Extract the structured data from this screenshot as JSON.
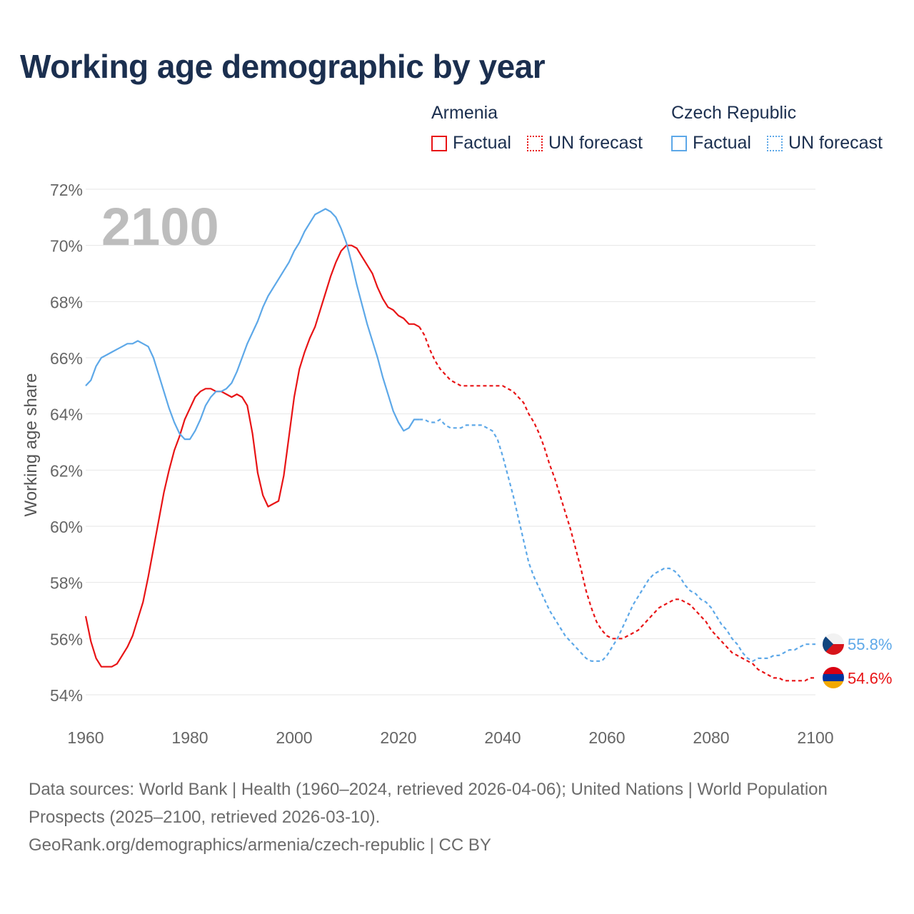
{
  "title": "Working age demographic by year",
  "legend": {
    "groups": [
      {
        "name": "Armenia",
        "factual": "Factual",
        "forecast": "UN forecast",
        "color": "#e81416"
      },
      {
        "name": "Czech Republic",
        "factual": "Factual",
        "forecast": "UN forecast",
        "color": "#5da8e8"
      }
    ]
  },
  "year_watermark": "2100",
  "footer": {
    "sources": "Data sources: World Bank | Health (1960–2024, retrieved 2026-04-06); United Nations | World Population Prospects (2025–2100, retrieved 2026-03-10).",
    "attribution": "GeoRank.org/demographics/armenia/czech-republic | CC BY"
  },
  "chart_data": {
    "type": "line",
    "ylabel": "Working age share",
    "xlabel": "",
    "xlim": [
      1960,
      2100
    ],
    "ylim": [
      53.5,
      72.3
    ],
    "x_ticks": [
      "1960",
      "1980",
      "2000",
      "2020",
      "2040",
      "2060",
      "2080",
      "2100"
    ],
    "y_ticks": [
      "54%",
      "56%",
      "58%",
      "60%",
      "62%",
      "64%",
      "66%",
      "68%",
      "70%",
      "72%"
    ],
    "factual_until": 2024,
    "series": [
      {
        "name": "Armenia",
        "color": "#e81416",
        "end_label": "54.6%",
        "points": [
          [
            1960,
            56.8
          ],
          [
            1961,
            55.9
          ],
          [
            1962,
            55.3
          ],
          [
            1963,
            55.0
          ],
          [
            1964,
            55.0
          ],
          [
            1965,
            55.0
          ],
          [
            1966,
            55.1
          ],
          [
            1967,
            55.4
          ],
          [
            1968,
            55.7
          ],
          [
            1969,
            56.1
          ],
          [
            1970,
            56.7
          ],
          [
            1971,
            57.3
          ],
          [
            1972,
            58.2
          ],
          [
            1973,
            59.2
          ],
          [
            1974,
            60.2
          ],
          [
            1975,
            61.2
          ],
          [
            1976,
            62.0
          ],
          [
            1977,
            62.7
          ],
          [
            1978,
            63.2
          ],
          [
            1979,
            63.8
          ],
          [
            1980,
            64.2
          ],
          [
            1981,
            64.6
          ],
          [
            1982,
            64.8
          ],
          [
            1983,
            64.9
          ],
          [
            1984,
            64.9
          ],
          [
            1985,
            64.8
          ],
          [
            1986,
            64.8
          ],
          [
            1987,
            64.7
          ],
          [
            1988,
            64.6
          ],
          [
            1989,
            64.7
          ],
          [
            1990,
            64.6
          ],
          [
            1991,
            64.3
          ],
          [
            1992,
            63.3
          ],
          [
            1993,
            61.9
          ],
          [
            1994,
            61.1
          ],
          [
            1995,
            60.7
          ],
          [
            1996,
            60.8
          ],
          [
            1997,
            60.9
          ],
          [
            1998,
            61.8
          ],
          [
            1999,
            63.2
          ],
          [
            2000,
            64.6
          ],
          [
            2001,
            65.6
          ],
          [
            2002,
            66.2
          ],
          [
            2003,
            66.7
          ],
          [
            2004,
            67.1
          ],
          [
            2005,
            67.7
          ],
          [
            2006,
            68.3
          ],
          [
            2007,
            68.9
          ],
          [
            2008,
            69.4
          ],
          [
            2009,
            69.8
          ],
          [
            2010,
            70.0
          ],
          [
            2011,
            70.0
          ],
          [
            2012,
            69.9
          ],
          [
            2013,
            69.6
          ],
          [
            2014,
            69.3
          ],
          [
            2015,
            69.0
          ],
          [
            2016,
            68.5
          ],
          [
            2017,
            68.1
          ],
          [
            2018,
            67.8
          ],
          [
            2019,
            67.7
          ],
          [
            2020,
            67.5
          ],
          [
            2021,
            67.4
          ],
          [
            2022,
            67.2
          ],
          [
            2023,
            67.2
          ],
          [
            2024,
            67.1
          ],
          [
            2025,
            66.8
          ],
          [
            2026,
            66.3
          ],
          [
            2027,
            65.9
          ],
          [
            2028,
            65.6
          ],
          [
            2029,
            65.4
          ],
          [
            2030,
            65.2
          ],
          [
            2031,
            65.1
          ],
          [
            2032,
            65.0
          ],
          [
            2033,
            65.0
          ],
          [
            2034,
            65.0
          ],
          [
            2035,
            65.0
          ],
          [
            2036,
            65.0
          ],
          [
            2037,
            65.0
          ],
          [
            2038,
            65.0
          ],
          [
            2039,
            65.0
          ],
          [
            2040,
            65.0
          ],
          [
            2041,
            64.9
          ],
          [
            2042,
            64.8
          ],
          [
            2043,
            64.6
          ],
          [
            2044,
            64.4
          ],
          [
            2045,
            64.0
          ],
          [
            2046,
            63.7
          ],
          [
            2047,
            63.3
          ],
          [
            2048,
            62.8
          ],
          [
            2049,
            62.2
          ],
          [
            2050,
            61.7
          ],
          [
            2051,
            61.1
          ],
          [
            2052,
            60.5
          ],
          [
            2053,
            59.9
          ],
          [
            2054,
            59.2
          ],
          [
            2055,
            58.5
          ],
          [
            2056,
            57.7
          ],
          [
            2057,
            57.1
          ],
          [
            2058,
            56.6
          ],
          [
            2059,
            56.3
          ],
          [
            2060,
            56.1
          ],
          [
            2061,
            56.0
          ],
          [
            2062,
            56.0
          ],
          [
            2063,
            56.0
          ],
          [
            2064,
            56.1
          ],
          [
            2065,
            56.2
          ],
          [
            2066,
            56.3
          ],
          [
            2067,
            56.5
          ],
          [
            2068,
            56.7
          ],
          [
            2069,
            56.9
          ],
          [
            2070,
            57.1
          ],
          [
            2071,
            57.2
          ],
          [
            2072,
            57.3
          ],
          [
            2073,
            57.4
          ],
          [
            2074,
            57.4
          ],
          [
            2075,
            57.3
          ],
          [
            2076,
            57.2
          ],
          [
            2077,
            57.0
          ],
          [
            2078,
            56.8
          ],
          [
            2079,
            56.6
          ],
          [
            2080,
            56.3
          ],
          [
            2081,
            56.1
          ],
          [
            2082,
            55.9
          ],
          [
            2083,
            55.7
          ],
          [
            2084,
            55.5
          ],
          [
            2085,
            55.4
          ],
          [
            2086,
            55.3
          ],
          [
            2087,
            55.2
          ],
          [
            2088,
            55.1
          ],
          [
            2089,
            54.9
          ],
          [
            2090,
            54.8
          ],
          [
            2091,
            54.7
          ],
          [
            2092,
            54.6
          ],
          [
            2093,
            54.6
          ],
          [
            2094,
            54.5
          ],
          [
            2095,
            54.5
          ],
          [
            2096,
            54.5
          ],
          [
            2097,
            54.5
          ],
          [
            2098,
            54.5
          ],
          [
            2099,
            54.6
          ],
          [
            2100,
            54.6
          ]
        ]
      },
      {
        "name": "Czech Republic",
        "color": "#5da8e8",
        "end_label": "55.8%",
        "points": [
          [
            1960,
            65.0
          ],
          [
            1961,
            65.2
          ],
          [
            1962,
            65.7
          ],
          [
            1963,
            66.0
          ],
          [
            1964,
            66.1
          ],
          [
            1965,
            66.2
          ],
          [
            1966,
            66.3
          ],
          [
            1967,
            66.4
          ],
          [
            1968,
            66.5
          ],
          [
            1969,
            66.5
          ],
          [
            1970,
            66.6
          ],
          [
            1971,
            66.5
          ],
          [
            1972,
            66.4
          ],
          [
            1973,
            66.0
          ],
          [
            1974,
            65.4
          ],
          [
            1975,
            64.8
          ],
          [
            1976,
            64.2
          ],
          [
            1977,
            63.7
          ],
          [
            1978,
            63.3
          ],
          [
            1979,
            63.1
          ],
          [
            1980,
            63.1
          ],
          [
            1981,
            63.4
          ],
          [
            1982,
            63.8
          ],
          [
            1983,
            64.3
          ],
          [
            1984,
            64.6
          ],
          [
            1985,
            64.8
          ],
          [
            1986,
            64.8
          ],
          [
            1987,
            64.9
          ],
          [
            1988,
            65.1
          ],
          [
            1989,
            65.5
          ],
          [
            1990,
            66.0
          ],
          [
            1991,
            66.5
          ],
          [
            1992,
            66.9
          ],
          [
            1993,
            67.3
          ],
          [
            1994,
            67.8
          ],
          [
            1995,
            68.2
          ],
          [
            1996,
            68.5
          ],
          [
            1997,
            68.8
          ],
          [
            1998,
            69.1
          ],
          [
            1999,
            69.4
          ],
          [
            2000,
            69.8
          ],
          [
            2001,
            70.1
          ],
          [
            2002,
            70.5
          ],
          [
            2003,
            70.8
          ],
          [
            2004,
            71.1
          ],
          [
            2005,
            71.2
          ],
          [
            2006,
            71.3
          ],
          [
            2007,
            71.2
          ],
          [
            2008,
            71.0
          ],
          [
            2009,
            70.6
          ],
          [
            2010,
            70.1
          ],
          [
            2011,
            69.4
          ],
          [
            2012,
            68.6
          ],
          [
            2013,
            67.9
          ],
          [
            2014,
            67.2
          ],
          [
            2015,
            66.6
          ],
          [
            2016,
            66.0
          ],
          [
            2017,
            65.3
          ],
          [
            2018,
            64.7
          ],
          [
            2019,
            64.1
          ],
          [
            2020,
            63.7
          ],
          [
            2021,
            63.4
          ],
          [
            2022,
            63.5
          ],
          [
            2023,
            63.8
          ],
          [
            2024,
            63.8
          ],
          [
            2025,
            63.8
          ],
          [
            2026,
            63.7
          ],
          [
            2027,
            63.7
          ],
          [
            2028,
            63.8
          ],
          [
            2029,
            63.6
          ],
          [
            2030,
            63.5
          ],
          [
            2031,
            63.5
          ],
          [
            2032,
            63.5
          ],
          [
            2033,
            63.6
          ],
          [
            2034,
            63.6
          ],
          [
            2035,
            63.6
          ],
          [
            2036,
            63.6
          ],
          [
            2037,
            63.5
          ],
          [
            2038,
            63.4
          ],
          [
            2039,
            63.1
          ],
          [
            2040,
            62.5
          ],
          [
            2041,
            61.8
          ],
          [
            2042,
            61.1
          ],
          [
            2043,
            60.3
          ],
          [
            2044,
            59.5
          ],
          [
            2045,
            58.7
          ],
          [
            2046,
            58.2
          ],
          [
            2047,
            57.8
          ],
          [
            2048,
            57.4
          ],
          [
            2049,
            57.0
          ],
          [
            2050,
            56.7
          ],
          [
            2051,
            56.4
          ],
          [
            2052,
            56.1
          ],
          [
            2053,
            55.9
          ],
          [
            2054,
            55.7
          ],
          [
            2055,
            55.5
          ],
          [
            2056,
            55.3
          ],
          [
            2057,
            55.2
          ],
          [
            2058,
            55.2
          ],
          [
            2059,
            55.2
          ],
          [
            2060,
            55.4
          ],
          [
            2061,
            55.7
          ],
          [
            2062,
            56.0
          ],
          [
            2063,
            56.4
          ],
          [
            2064,
            56.8
          ],
          [
            2065,
            57.2
          ],
          [
            2066,
            57.5
          ],
          [
            2067,
            57.8
          ],
          [
            2068,
            58.1
          ],
          [
            2069,
            58.3
          ],
          [
            2070,
            58.4
          ],
          [
            2071,
            58.5
          ],
          [
            2072,
            58.5
          ],
          [
            2073,
            58.4
          ],
          [
            2074,
            58.2
          ],
          [
            2075,
            57.9
          ],
          [
            2076,
            57.7
          ],
          [
            2077,
            57.6
          ],
          [
            2078,
            57.4
          ],
          [
            2079,
            57.3
          ],
          [
            2080,
            57.1
          ],
          [
            2081,
            56.8
          ],
          [
            2082,
            56.5
          ],
          [
            2083,
            56.3
          ],
          [
            2084,
            56.0
          ],
          [
            2085,
            55.8
          ],
          [
            2086,
            55.5
          ],
          [
            2087,
            55.3
          ],
          [
            2088,
            55.2
          ],
          [
            2089,
            55.3
          ],
          [
            2090,
            55.3
          ],
          [
            2091,
            55.3
          ],
          [
            2092,
            55.4
          ],
          [
            2093,
            55.4
          ],
          [
            2094,
            55.5
          ],
          [
            2095,
            55.6
          ],
          [
            2096,
            55.6
          ],
          [
            2097,
            55.7
          ],
          [
            2098,
            55.8
          ],
          [
            2099,
            55.8
          ],
          [
            2100,
            55.8
          ]
        ]
      }
    ]
  }
}
